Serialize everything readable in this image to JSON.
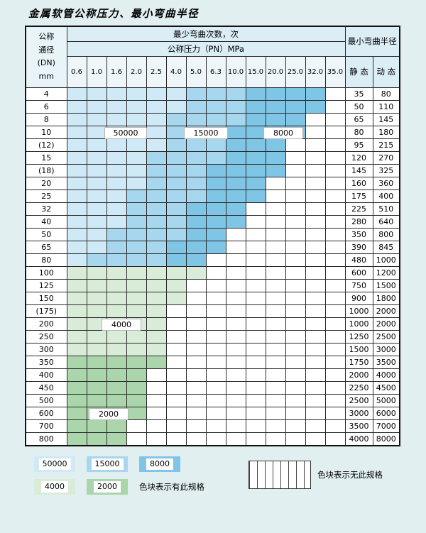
{
  "title": "金属软管公称压力、最小弯曲半径",
  "table": {
    "header": {
      "dn_lines": [
        "公称",
        "通径",
        "(DN)",
        "mm"
      ],
      "bend_times": "最少弯曲次数，次",
      "pressure_band": "公称压力（PN）MPa",
      "pressures": [
        "0.6",
        "1.0",
        "1.6",
        "2.0",
        "2.5",
        "4.0",
        "5.0",
        "6.3",
        "10.0",
        "15.0",
        "20.0",
        "25.0",
        "32.0",
        "35.0"
      ],
      "radius_band": "最小弯曲半径",
      "static": "静 态",
      "dynamic": "动 态"
    },
    "rows": [
      {
        "dn": "4",
        "s": "35",
        "d": "80",
        "zone": "blue",
        "a": 5,
        "b": 8,
        "e": 12
      },
      {
        "dn": "6",
        "s": "50",
        "d": "110",
        "zone": "blue",
        "a": 5,
        "b": 8,
        "e": 12
      },
      {
        "dn": "8",
        "s": "65",
        "d": "145",
        "zone": "blue",
        "a": 4,
        "b": 8,
        "e": 11
      },
      {
        "dn": "10",
        "s": "80",
        "d": "180",
        "zone": "blue",
        "a": 4,
        "b": 7,
        "e": 11
      },
      {
        "dn": "(12)",
        "s": "95",
        "d": "215",
        "zone": "blue",
        "a": 4,
        "b": 7,
        "e": 10
      },
      {
        "dn": "15",
        "s": "120",
        "d": "270",
        "zone": "blue",
        "a": 3,
        "b": 7,
        "e": 10
      },
      {
        "dn": "(18)",
        "s": "145",
        "d": "325",
        "zone": "blue",
        "a": 3,
        "b": 6,
        "e": 10
      },
      {
        "dn": "20",
        "s": "160",
        "d": "360",
        "zone": "blue",
        "a": 3,
        "b": 6,
        "e": 9
      },
      {
        "dn": "25",
        "s": "175",
        "d": "400",
        "zone": "blue",
        "a": 2,
        "b": 6,
        "e": 9
      },
      {
        "dn": "32",
        "s": "225",
        "d": "510",
        "zone": "blue",
        "a": 2,
        "b": 5,
        "e": 8
      },
      {
        "dn": "40",
        "s": "280",
        "d": "640",
        "zone": "blue",
        "a": 2,
        "b": 5,
        "e": 8
      },
      {
        "dn": "50",
        "s": "350",
        "d": "800",
        "zone": "blue",
        "a": 1,
        "b": 5,
        "e": 7
      },
      {
        "dn": "65",
        "s": "390",
        "d": "845",
        "zone": "blue",
        "a": 1,
        "b": 4,
        "e": 7
      },
      {
        "dn": "80",
        "s": "480",
        "d": "1000",
        "zone": "blue",
        "a": 0,
        "b": 4,
        "e": 6
      },
      {
        "dn": "100",
        "s": "600",
        "d": "1200",
        "zone": "g4",
        "e": 6
      },
      {
        "dn": "125",
        "s": "750",
        "d": "1500",
        "zone": "g4",
        "e": 5
      },
      {
        "dn": "150",
        "s": "900",
        "d": "1800",
        "zone": "g4",
        "e": 5
      },
      {
        "dn": "(175)",
        "s": "1000",
        "d": "2000",
        "zone": "g4",
        "e": 4
      },
      {
        "dn": "200",
        "s": "1000",
        "d": "2000",
        "zone": "g4",
        "e": 4
      },
      {
        "dn": "250",
        "s": "1250",
        "d": "2500",
        "zone": "g4",
        "e": 4
      },
      {
        "dn": "300",
        "s": "1500",
        "d": "3000",
        "zone": "g4",
        "e": 4
      },
      {
        "dn": "350",
        "s": "1750",
        "d": "3500",
        "zone": "g2",
        "e": 4
      },
      {
        "dn": "400",
        "s": "2000",
        "d": "4000",
        "zone": "g2",
        "e": 3
      },
      {
        "dn": "450",
        "s": "2250",
        "d": "4500",
        "zone": "g2",
        "e": 3
      },
      {
        "dn": "500",
        "s": "2500",
        "d": "5000",
        "zone": "g2",
        "e": 3
      },
      {
        "dn": "600",
        "s": "3000",
        "d": "6000",
        "zone": "g2",
        "e": 3
      },
      {
        "dn": "700",
        "s": "3500",
        "d": "7000",
        "zone": "g2",
        "e": 2
      },
      {
        "dn": "800",
        "s": "4000",
        "d": "8000",
        "zone": "g2",
        "e": 2
      }
    ]
  },
  "zone_labels": {
    "z50000": "50000",
    "z15000": "15000",
    "z8000": "8000",
    "z4000": "4000",
    "z2000": "2000"
  },
  "legend": {
    "items": [
      {
        "label": "50000"
      },
      {
        "label": "15000"
      },
      {
        "label": "8000"
      },
      {
        "label": "4000"
      },
      {
        "label": "2000"
      }
    ],
    "has_text": "色块表示有此规格",
    "none_text": "色块表示无此规格"
  },
  "colors": {
    "b50": "#cfe9f6",
    "b15": "#a6d7ee",
    "b8": "#7fc6e6",
    "g4": "#d8ecd8",
    "g2": "#abd5ab",
    "page_bg": "#e2eff1"
  }
}
